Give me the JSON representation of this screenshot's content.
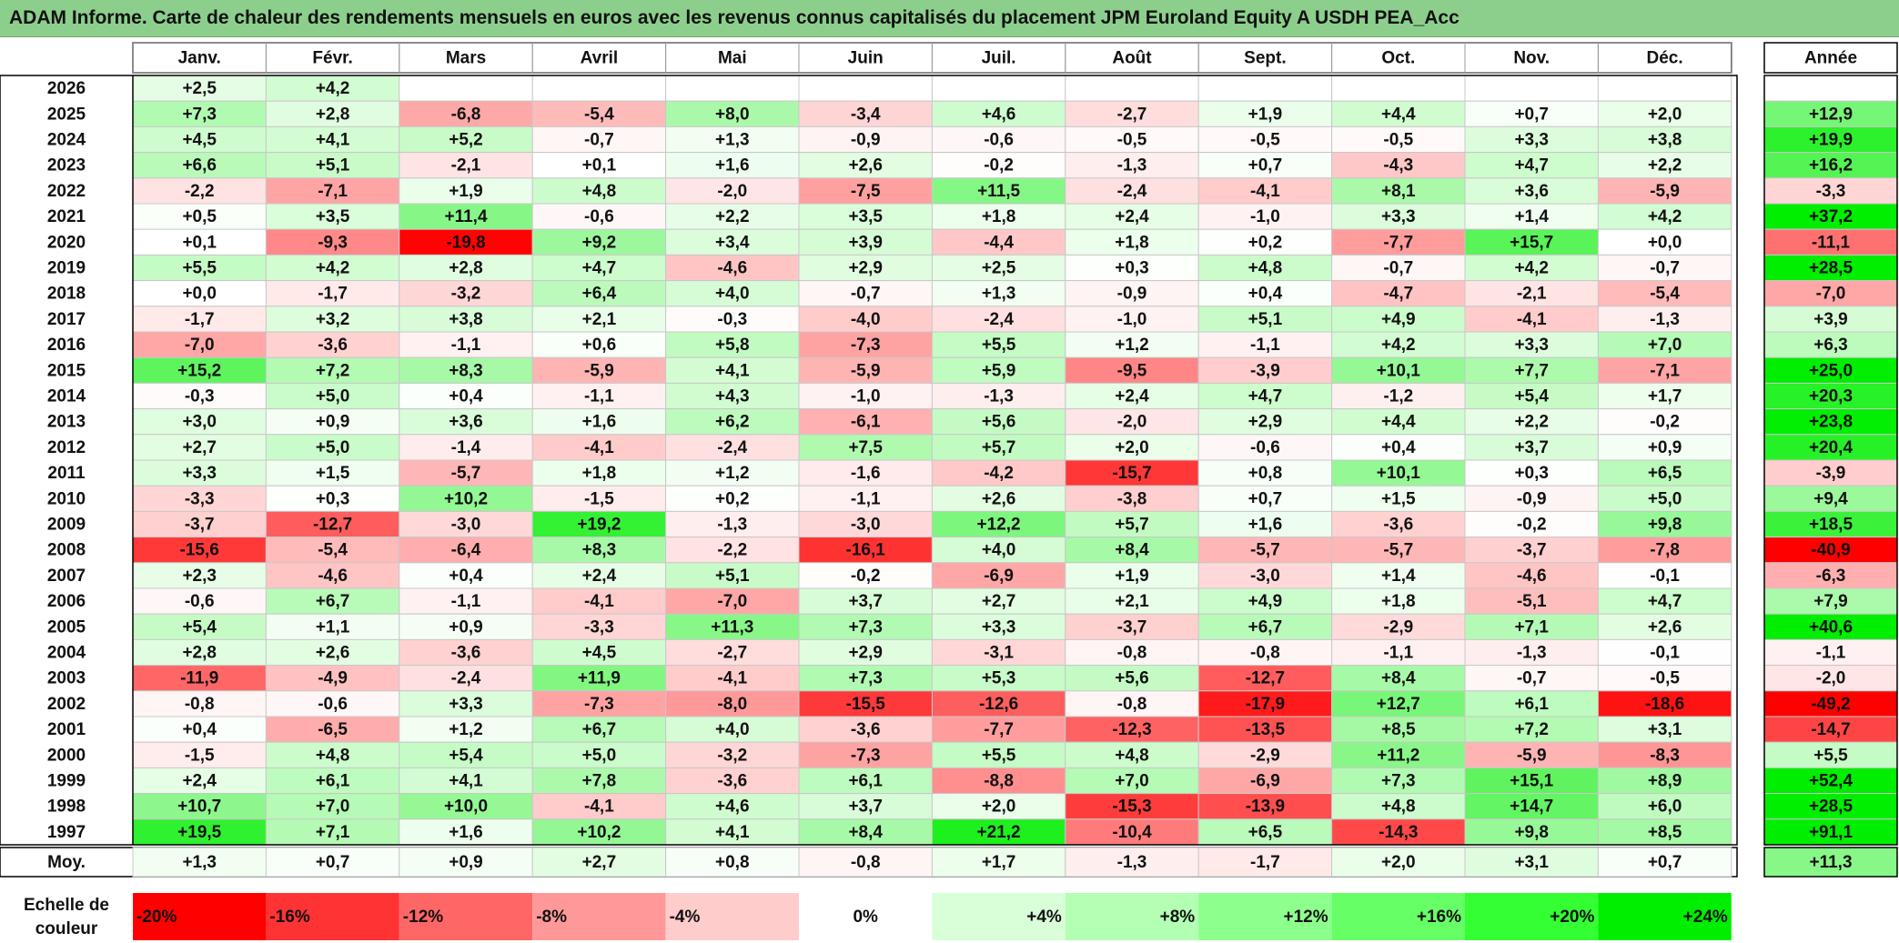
{
  "title": "ADAM Informe. Carte de chaleur des rendements mensuels en euros avec les revenus connus capitalisés du placement JPM Euroland Equity A USDH PEA_Acc",
  "chart_data": {
    "type": "heatmap",
    "months": [
      "Janv.",
      "Févr.",
      "Mars",
      "Avril",
      "Mai",
      "Juin",
      "Juil.",
      "Août",
      "Sept.",
      "Oct.",
      "Nov.",
      "Déc."
    ],
    "year_header": "Année",
    "rows": [
      {
        "year": "2026",
        "months": [
          "+2,5",
          "+4,2",
          "",
          "",
          "",
          "",
          "",
          "",
          "",
          "",
          "",
          ""
        ],
        "annual": ""
      },
      {
        "year": "2025",
        "months": [
          "+7,3",
          "+2,8",
          "-6,8",
          "-5,4",
          "+8,0",
          "-3,4",
          "+4,6",
          "-2,7",
          "+1,9",
          "+4,4",
          "+0,7",
          "+2,0"
        ],
        "annual": "+12,9"
      },
      {
        "year": "2024",
        "months": [
          "+4,5",
          "+4,1",
          "+5,2",
          "-0,7",
          "+1,3",
          "-0,9",
          "-0,6",
          "-0,5",
          "-0,5",
          "-0,5",
          "+3,3",
          "+3,8"
        ],
        "annual": "+19,9"
      },
      {
        "year": "2023",
        "months": [
          "+6,6",
          "+5,1",
          "-2,1",
          "+0,1",
          "+1,6",
          "+2,6",
          "-0,2",
          "-1,3",
          "+0,7",
          "-4,3",
          "+4,7",
          "+2,2"
        ],
        "annual": "+16,2"
      },
      {
        "year": "2022",
        "months": [
          "-2,2",
          "-7,1",
          "+1,9",
          "+4,8",
          "-2,0",
          "-7,5",
          "+11,5",
          "-2,4",
          "-4,1",
          "+8,1",
          "+3,6",
          "-5,9"
        ],
        "annual": "-3,3"
      },
      {
        "year": "2021",
        "months": [
          "+0,5",
          "+3,5",
          "+11,4",
          "-0,6",
          "+2,2",
          "+3,5",
          "+1,8",
          "+2,4",
          "-1,0",
          "+3,3",
          "+1,4",
          "+4,2"
        ],
        "annual": "+37,2"
      },
      {
        "year": "2020",
        "months": [
          "+0,1",
          "-9,3",
          "-19,8",
          "+9,2",
          "+3,4",
          "+3,9",
          "-4,4",
          "+1,8",
          "+0,2",
          "-7,7",
          "+15,7",
          "+0,0"
        ],
        "annual": "-11,1"
      },
      {
        "year": "2019",
        "months": [
          "+5,5",
          "+4,2",
          "+2,8",
          "+4,7",
          "-4,6",
          "+2,9",
          "+2,5",
          "+0,3",
          "+4,8",
          "-0,7",
          "+4,2",
          "-0,7"
        ],
        "annual": "+28,5"
      },
      {
        "year": "2018",
        "months": [
          "+0,0",
          "-1,7",
          "-3,2",
          "+6,4",
          "+4,0",
          "-0,7",
          "+1,3",
          "-0,9",
          "+0,4",
          "-4,7",
          "-2,1",
          "-5,4"
        ],
        "annual": "-7,0"
      },
      {
        "year": "2017",
        "months": [
          "-1,7",
          "+3,2",
          "+3,8",
          "+2,1",
          "-0,3",
          "-4,0",
          "-2,4",
          "-1,0",
          "+5,1",
          "+4,9",
          "-4,1",
          "-1,3"
        ],
        "annual": "+3,9"
      },
      {
        "year": "2016",
        "months": [
          "-7,0",
          "-3,6",
          "-1,1",
          "+0,6",
          "+5,8",
          "-7,3",
          "+5,5",
          "+1,2",
          "-1,1",
          "+4,2",
          "+3,3",
          "+7,0"
        ],
        "annual": "+6,3"
      },
      {
        "year": "2015",
        "months": [
          "+15,2",
          "+7,2",
          "+8,3",
          "-5,9",
          "+4,1",
          "-5,9",
          "+5,9",
          "-9,5",
          "-3,9",
          "+10,1",
          "+7,7",
          "-7,1"
        ],
        "annual": "+25,0"
      },
      {
        "year": "2014",
        "months": [
          "-0,3",
          "+5,0",
          "+0,4",
          "-1,1",
          "+4,3",
          "-1,0",
          "-1,3",
          "+2,4",
          "+4,7",
          "-1,2",
          "+5,4",
          "+1,7"
        ],
        "annual": "+20,3"
      },
      {
        "year": "2013",
        "months": [
          "+3,0",
          "+0,9",
          "+3,6",
          "+1,6",
          "+6,2",
          "-6,1",
          "+5,6",
          "-2,0",
          "+2,9",
          "+4,4",
          "+2,2",
          "-0,2"
        ],
        "annual": "+23,8"
      },
      {
        "year": "2012",
        "months": [
          "+2,7",
          "+5,0",
          "-1,4",
          "-4,1",
          "-2,4",
          "+7,5",
          "+5,7",
          "+2,0",
          "-0,6",
          "+0,4",
          "+3,7",
          "+0,9"
        ],
        "annual": "+20,4"
      },
      {
        "year": "2011",
        "months": [
          "+3,3",
          "+1,5",
          "-5,7",
          "+1,8",
          "+1,2",
          "-1,6",
          "-4,2",
          "-15,7",
          "+0,8",
          "+10,1",
          "+0,3",
          "+6,5"
        ],
        "annual": "-3,9"
      },
      {
        "year": "2010",
        "months": [
          "-3,3",
          "+0,3",
          "+10,2",
          "-1,5",
          "+0,2",
          "-1,1",
          "+2,6",
          "-3,8",
          "+0,7",
          "+1,5",
          "-0,9",
          "+5,0"
        ],
        "annual": "+9,4"
      },
      {
        "year": "2009",
        "months": [
          "-3,7",
          "-12,7",
          "-3,0",
          "+19,2",
          "-1,3",
          "-3,0",
          "+12,2",
          "+5,7",
          "+1,6",
          "-3,6",
          "-0,2",
          "+9,8"
        ],
        "annual": "+18,5"
      },
      {
        "year": "2008",
        "months": [
          "-15,6",
          "-5,4",
          "-6,4",
          "+8,3",
          "-2,2",
          "-16,1",
          "+4,0",
          "+8,4",
          "-5,7",
          "-5,7",
          "-3,7",
          "-7,8"
        ],
        "annual": "-40,9"
      },
      {
        "year": "2007",
        "months": [
          "+2,3",
          "-4,6",
          "+0,4",
          "+2,4",
          "+5,1",
          "-0,2",
          "-6,9",
          "+1,9",
          "-3,0",
          "+1,4",
          "-4,6",
          "-0,1"
        ],
        "annual": "-6,3"
      },
      {
        "year": "2006",
        "months": [
          "-0,6",
          "+6,7",
          "-1,1",
          "-4,1",
          "-7,0",
          "+3,7",
          "+2,7",
          "+2,1",
          "+4,9",
          "+1,8",
          "-5,1",
          "+4,7"
        ],
        "annual": "+7,9"
      },
      {
        "year": "2005",
        "months": [
          "+5,4",
          "+1,1",
          "+0,9",
          "-3,3",
          "+11,3",
          "+7,3",
          "+3,3",
          "-3,7",
          "+6,7",
          "-2,9",
          "+7,1",
          "+2,6"
        ],
        "annual": "+40,6"
      },
      {
        "year": "2004",
        "months": [
          "+2,8",
          "+2,6",
          "-3,6",
          "+4,5",
          "-2,7",
          "+2,9",
          "-3,1",
          "-0,8",
          "-0,8",
          "-1,1",
          "-1,3",
          "-0,1"
        ],
        "annual": "-1,1"
      },
      {
        "year": "2003",
        "months": [
          "-11,9",
          "-4,9",
          "-2,4",
          "+11,9",
          "-4,1",
          "+7,3",
          "+5,3",
          "+5,6",
          "-12,7",
          "+8,4",
          "-0,7",
          "-0,5"
        ],
        "annual": "-2,0"
      },
      {
        "year": "2002",
        "months": [
          "-0,8",
          "-0,6",
          "+3,3",
          "-7,3",
          "-8,0",
          "-15,5",
          "-12,6",
          "-0,8",
          "-17,9",
          "+12,7",
          "+6,1",
          "-18,6"
        ],
        "annual": "-49,2"
      },
      {
        "year": "2001",
        "months": [
          "+0,4",
          "-6,5",
          "+1,2",
          "+6,7",
          "+4,0",
          "-3,6",
          "-7,7",
          "-12,3",
          "-13,5",
          "+8,5",
          "+7,2",
          "+3,1"
        ],
        "annual": "-14,7"
      },
      {
        "year": "2000",
        "months": [
          "-1,5",
          "+4,8",
          "+5,4",
          "+5,0",
          "-3,2",
          "-7,3",
          "+5,5",
          "+4,8",
          "-2,9",
          "+11,2",
          "-5,9",
          "-8,3"
        ],
        "annual": "+5,5"
      },
      {
        "year": "1999",
        "months": [
          "+2,4",
          "+6,1",
          "+4,1",
          "+7,8",
          "-3,6",
          "+6,1",
          "-8,8",
          "+7,0",
          "-6,9",
          "+7,3",
          "+15,1",
          "+8,9"
        ],
        "annual": "+52,4"
      },
      {
        "year": "1998",
        "months": [
          "+10,7",
          "+7,0",
          "+10,0",
          "-4,1",
          "+4,6",
          "+3,7",
          "+2,0",
          "-15,3",
          "-13,9",
          "+4,8",
          "+14,7",
          "+6,0"
        ],
        "annual": "+28,5"
      },
      {
        "year": "1997",
        "months": [
          "+19,5",
          "+7,1",
          "+1,6",
          "+10,2",
          "+4,1",
          "+8,4",
          "+21,2",
          "-10,4",
          "+6,5",
          "-14,3",
          "+9,8",
          "+8,5"
        ],
        "annual": "+91,1"
      }
    ],
    "average": {
      "label": "Moy.",
      "months": [
        "+1,3",
        "+0,7",
        "+0,9",
        "+2,7",
        "+0,8",
        "-0,8",
        "+1,7",
        "-1,3",
        "-1,7",
        "+2,0",
        "+3,1",
        "+0,7"
      ],
      "annual": "+11,3"
    },
    "scale": {
      "label_line1": "Echelle de",
      "label_line2": "couleur",
      "steps": [
        {
          "label": "-20%",
          "value": -20,
          "color": "#ff0000"
        },
        {
          "label": "-16%",
          "value": -16,
          "color": "#ff3333"
        },
        {
          "label": "-12%",
          "value": -12,
          "color": "#ff6666"
        },
        {
          "label": "-8%",
          "value": -8,
          "color": "#ff9999"
        },
        {
          "label": "-4%",
          "value": -4,
          "color": "#ffcccc"
        },
        {
          "label": "0%",
          "value": 0,
          "color": "#ffffff"
        },
        {
          "label": "+4%",
          "value": 4,
          "color": "#d9ffd9"
        },
        {
          "label": "+8%",
          "value": 8,
          "color": "#b3ffb3"
        },
        {
          "label": "+12%",
          "value": 12,
          "color": "#8cff8c"
        },
        {
          "label": "+16%",
          "value": 16,
          "color": "#66ff66"
        },
        {
          "label": "+20%",
          "value": 20,
          "color": "#33ff33"
        },
        {
          "label": "+24%",
          "value": 24,
          "color": "#00ee00"
        }
      ]
    },
    "colors": {
      "title_bg": "#8ccf8c",
      "negative_max": "#ff0000",
      "neutral": "#ffffff",
      "positive_max": "#00ee00"
    }
  }
}
